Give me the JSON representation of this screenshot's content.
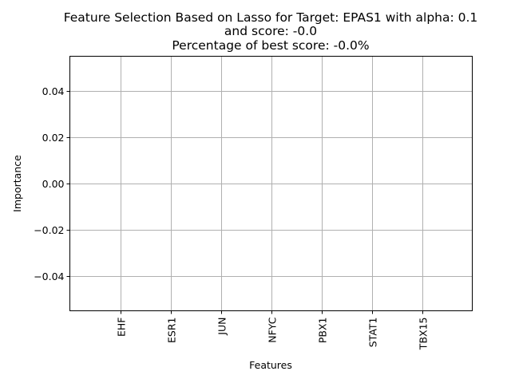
{
  "chart_data": {
    "type": "bar",
    "title_lines": [
      "Feature Selection Based on Lasso for Target: EPAS1 with alpha: 0.1",
      "and score: -0.0",
      "Percentage of best score: -0.0%"
    ],
    "xlabel": "Features",
    "ylabel": "Importance",
    "categories": [
      "EHF",
      "ESR1",
      "JUN",
      "NFYC",
      "PBX1",
      "STAT1",
      "TBX15"
    ],
    "values": [
      0,
      0,
      0,
      0,
      0,
      0,
      0
    ],
    "ylim": [
      -0.055,
      0.055
    ],
    "yticks": [
      -0.04,
      -0.02,
      0.0,
      0.02,
      0.04
    ],
    "ytick_labels": [
      "−0.04",
      "−0.02",
      "0.00",
      "0.02",
      "0.04"
    ],
    "grid": true,
    "colors": {
      "grid": "#b0b0b0",
      "axes": "#000000",
      "bar": "#1f77b4"
    }
  }
}
